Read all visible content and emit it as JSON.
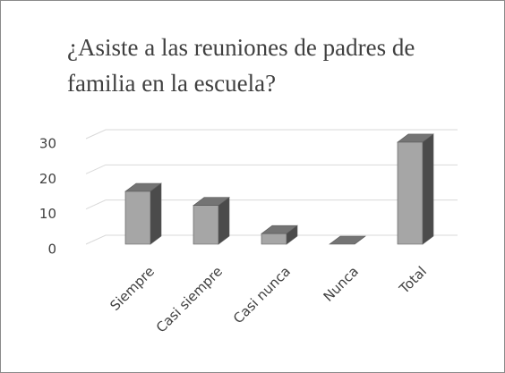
{
  "chart_data": {
    "type": "bar",
    "title": "¿Asiste a las reuniones de padres de familia en la escuela?",
    "categories": [
      "Siempre",
      "Casi siempre",
      "Casi nunca",
      "Nunca",
      "Total"
    ],
    "values": [
      15,
      11,
      3,
      0,
      29
    ],
    "color": "#a6a6a6",
    "ylim": [
      0,
      30
    ],
    "yticks": [
      0,
      10,
      20,
      30
    ],
    "grid": true
  }
}
